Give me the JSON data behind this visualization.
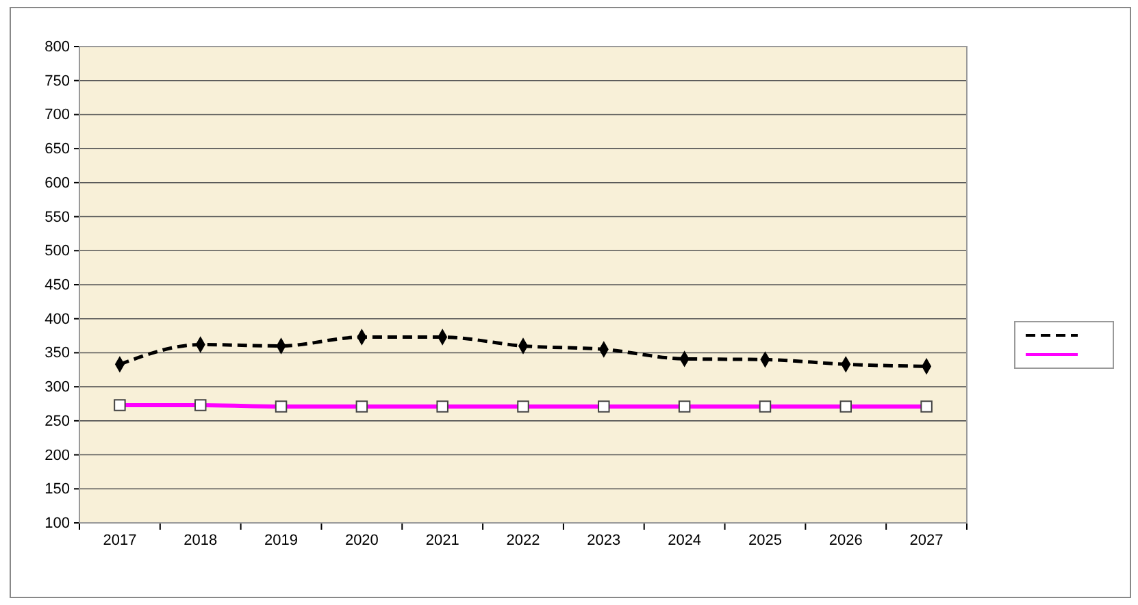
{
  "chart_data": {
    "type": "line",
    "categories": [
      "2017",
      "2018",
      "2019",
      "2020",
      "2021",
      "2022",
      "2023",
      "2024",
      "2025",
      "2026",
      "2027"
    ],
    "series": [
      {
        "color": "#000000",
        "values": [
          333,
          362,
          360,
          373,
          373,
          360,
          355,
          341,
          340,
          333,
          330
        ],
        "marker": "diamond",
        "line_style": "dashed"
      },
      {
        "color": "#ff00ff",
        "values": [
          273,
          273,
          271,
          271,
          271,
          271,
          271,
          271,
          271,
          271,
          271
        ],
        "marker": "square",
        "line_style": "solid"
      }
    ],
    "ylim": [
      100,
      800
    ],
    "yticks": [
      100,
      150,
      200,
      250,
      300,
      350,
      400,
      450,
      500,
      550,
      600,
      650,
      700,
      750,
      800
    ],
    "grid": "y"
  }
}
